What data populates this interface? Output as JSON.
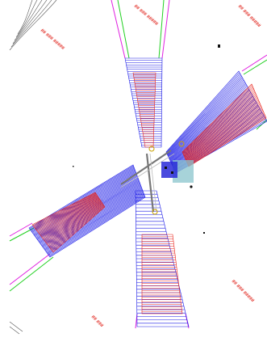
{
  "drawing": {
    "colors": {
      "background": "#ffffff",
      "border_line": "#e020e0",
      "guide_line": "#22d022",
      "hatch_blue": "#1a1ae6",
      "hatch_red": "#e8221a",
      "center_gray": "#8a8a8a",
      "contour": "#555555",
      "station_block": "#8ac4cc",
      "label": "#e0221a"
    },
    "labels": [
      {
        "id": "label-top-left",
        "text": "## ### #####"
      },
      {
        "id": "label-top-mid",
        "text": "## ### #####"
      },
      {
        "id": "label-top-right",
        "text": "## ### #####"
      },
      {
        "id": "label-bot-right",
        "text": "## ### #####"
      },
      {
        "id": "label-bot-left",
        "text": "## ###"
      }
    ]
  }
}
